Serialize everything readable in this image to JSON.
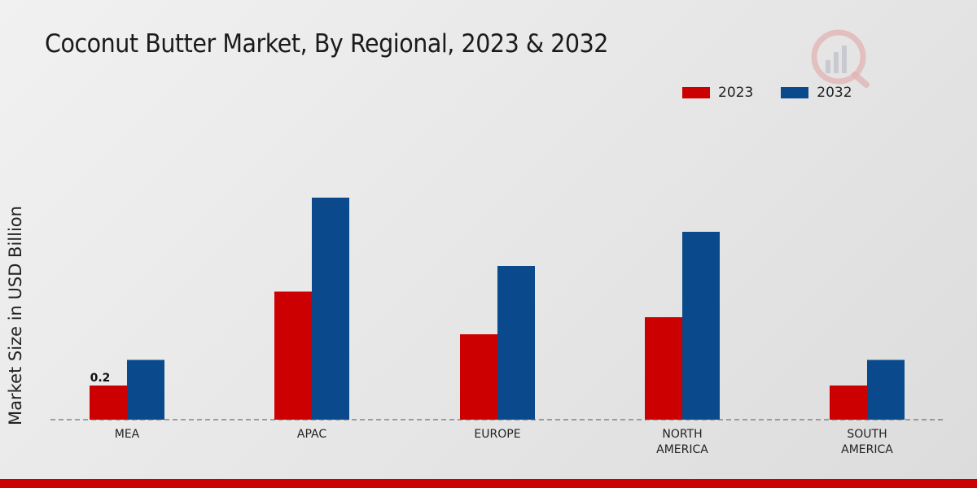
{
  "chart_data": {
    "type": "bar",
    "title": "Coconut Butter Market, By Regional, 2023 & 2032",
    "ylabel": "Market Size in USD Billion",
    "xlabel": "",
    "categories": [
      "MEA",
      "APAC",
      "EUROPE",
      "NORTH AMERICA",
      "SOUTH AMERICA"
    ],
    "category_lines": [
      [
        "MEA"
      ],
      [
        "APAC"
      ],
      [
        "EUROPE"
      ],
      [
        "NORTH",
        "AMERICA"
      ],
      [
        "SOUTH",
        "AMERICA"
      ]
    ],
    "series": [
      {
        "name": "2023",
        "color": "#cc0000",
        "values": [
          0.2,
          0.75,
          0.5,
          0.6,
          0.2
        ]
      },
      {
        "name": "2032",
        "color": "#0a4a8c",
        "values": [
          0.35,
          1.3,
          0.9,
          1.1,
          0.35
        ]
      }
    ],
    "ylim": [
      0,
      1.6
    ],
    "data_labels": [
      {
        "category": "MEA",
        "series": "2023",
        "text": "0.2"
      }
    ],
    "legend_position": "top-right",
    "grid": false
  }
}
